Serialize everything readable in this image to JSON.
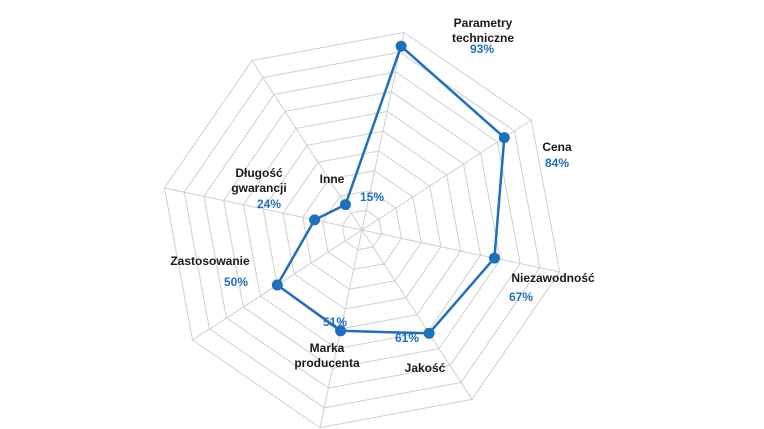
{
  "chart_data": {
    "type": "radar",
    "max": 100,
    "rings": 10,
    "grid": true,
    "color": "#1f6fbf",
    "grid_color": "#cfcfcf",
    "categories": [
      {
        "lines": [
          "Parametry",
          "techniczne"
        ],
        "value": 93,
        "value_label": "93%"
      },
      {
        "lines": [
          "Cena"
        ],
        "value": 84,
        "value_label": "84%"
      },
      {
        "lines": [
          "Niezawodność"
        ],
        "value": 67,
        "value_label": "67%"
      },
      {
        "lines": [
          "Jakość"
        ],
        "value": 61,
        "value_label": "61%"
      },
      {
        "lines": [
          "Marka",
          "producenta"
        ],
        "value": 51,
        "value_label": "51%"
      },
      {
        "lines": [
          "Zastosowanie"
        ],
        "value": 50,
        "value_label": "50%"
      },
      {
        "lines": [
          "Długość",
          "gwarancji"
        ],
        "value": 24,
        "value_label": "24%"
      },
      {
        "lines": [
          "Inne"
        ],
        "value": 15,
        "value_label": "15%"
      }
    ]
  }
}
